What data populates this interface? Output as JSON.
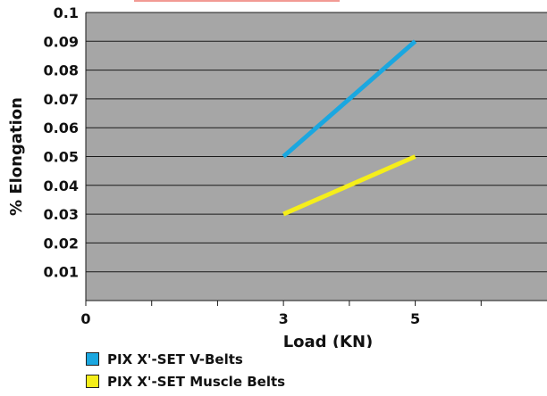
{
  "chart_data": {
    "type": "line",
    "title": "",
    "xlabel": "Load (KN)",
    "ylabel": "% Elongation",
    "x_ticks": [
      "0",
      "3",
      "5"
    ],
    "y_ticks": [
      "0.01",
      "0.02",
      "0.03",
      "0.04",
      "0.05",
      "0.06",
      "0.07",
      "0.08",
      "0.09",
      "0.1"
    ],
    "xlim": [
      0,
      7
    ],
    "ylim": [
      0,
      0.1
    ],
    "grid": true,
    "legend_position": "bottom-left",
    "plot_background": "#a6a6a6",
    "series": [
      {
        "name": "PIX X'-SET V-Belts",
        "color": "#1aa7e0",
        "x": [
          3,
          5
        ],
        "y": [
          0.05,
          0.09
        ]
      },
      {
        "name": "PIX X'-SET Muscle Belts",
        "color": "#f5ee1a",
        "x": [
          3,
          5
        ],
        "y": [
          0.03,
          0.05
        ]
      }
    ]
  }
}
